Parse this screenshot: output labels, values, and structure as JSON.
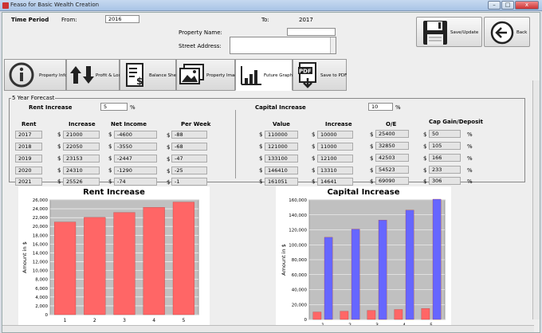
{
  "window": {
    "title": "Feaso for Basic Wealth Creation",
    "controls": [
      "–",
      "□",
      "x"
    ]
  },
  "header": {
    "time_period_label": "Time Period",
    "from_label": "From:",
    "from_value": "2016",
    "to_label": "To:",
    "to_value": "2017",
    "property_name_label": "Property Name:",
    "property_name_value": "",
    "street_address_label": "Street Address:",
    "street_address_value": "",
    "save_label": "Save/Update",
    "back_label": "Back"
  },
  "tabs": [
    {
      "label": "Property Info",
      "icon": "info-icon"
    },
    {
      "label": "Profit & Loss",
      "icon": "up-down-arrows-icon"
    },
    {
      "label": "Balance Sheet",
      "icon": "document-dollar-icon"
    },
    {
      "label": "Property Image",
      "icon": "picture-icon"
    },
    {
      "label": "Future Graphs",
      "icon": "bar-chart-icon",
      "active": true
    },
    {
      "label": "Save to PDF",
      "icon": "pdf-icon"
    }
  ],
  "forecast": {
    "title": "5 Year Forecast",
    "rent_increase_label": "Rent Increase",
    "rent_increase_value": "5",
    "capital_increase_label": "Capital Increase",
    "capital_increase_value": "10",
    "percent_sign": "%",
    "dollar_sign": "$",
    "left_headers": [
      "Rent",
      "Increase",
      "Net Income",
      "Per Week"
    ],
    "right_headers": [
      "Value",
      "Increase",
      "O/E",
      "Cap Gain/Deposit"
    ],
    "rows": [
      {
        "year": "2017",
        "increase": "21000",
        "net_income": "-4600",
        "per_week": "-88",
        "value": "110000",
        "cap_increase": "10000",
        "oe": "25400",
        "cap_gain": "50"
      },
      {
        "year": "2018",
        "increase": "22050",
        "net_income": "-3550",
        "per_week": "-68",
        "value": "121000",
        "cap_increase": "11000",
        "oe": "32850",
        "cap_gain": "105"
      },
      {
        "year": "2019",
        "increase": "23153",
        "net_income": "-2447",
        "per_week": "-47",
        "value": "133100",
        "cap_increase": "12100",
        "oe": "42503",
        "cap_gain": "166"
      },
      {
        "year": "2020",
        "increase": "24310",
        "net_income": "-1290",
        "per_week": "-25",
        "value": "146410",
        "cap_increase": "13310",
        "oe": "54523",
        "cap_gain": "233"
      },
      {
        "year": "2021",
        "increase": "25526",
        "net_income": "-74",
        "per_week": "-1",
        "value": "161051",
        "cap_increase": "14641",
        "oe": "69090",
        "cap_gain": "306"
      }
    ]
  },
  "chart_data": [
    {
      "type": "bar",
      "title": "Rent Increase",
      "xlabel": "",
      "ylabel": "Amount in $",
      "categories": [
        "1",
        "2",
        "3",
        "4",
        "5"
      ],
      "series": [
        {
          "values": [
            21000,
            22050,
            23153,
            24310,
            25526
          ]
        }
      ],
      "ylim": [
        0,
        26000
      ],
      "yticks": [
        "0",
        "2,000",
        "4,000",
        "6,000",
        "8,000",
        "10,000",
        "12,000",
        "14,000",
        "16,000",
        "18,000",
        "20,000",
        "22,000",
        "24,000",
        "26,000"
      ],
      "bar_color": "#ff6666",
      "plot_bg": "#c0c0c0",
      "grid": true
    },
    {
      "type": "bar",
      "title": "Capital Increase",
      "xlabel": "",
      "ylabel": "Amount in $",
      "categories": [
        "1",
        "2",
        "3",
        "4",
        "5"
      ],
      "series": [
        {
          "values": [
            10000,
            11000,
            12100,
            13310,
            14641
          ],
          "color": "#ff6666"
        },
        {
          "values": [
            110000,
            121000,
            133100,
            146410,
            161051
          ],
          "color": "#6666ff"
        }
      ],
      "ylim": [
        0,
        160000
      ],
      "yticks": [
        "0",
        "20,000",
        "40,000",
        "60,000",
        "80,000",
        "100,000",
        "120,000",
        "140,000",
        "160,000"
      ],
      "plot_bg": "#c0c0c0",
      "grid": true
    }
  ]
}
